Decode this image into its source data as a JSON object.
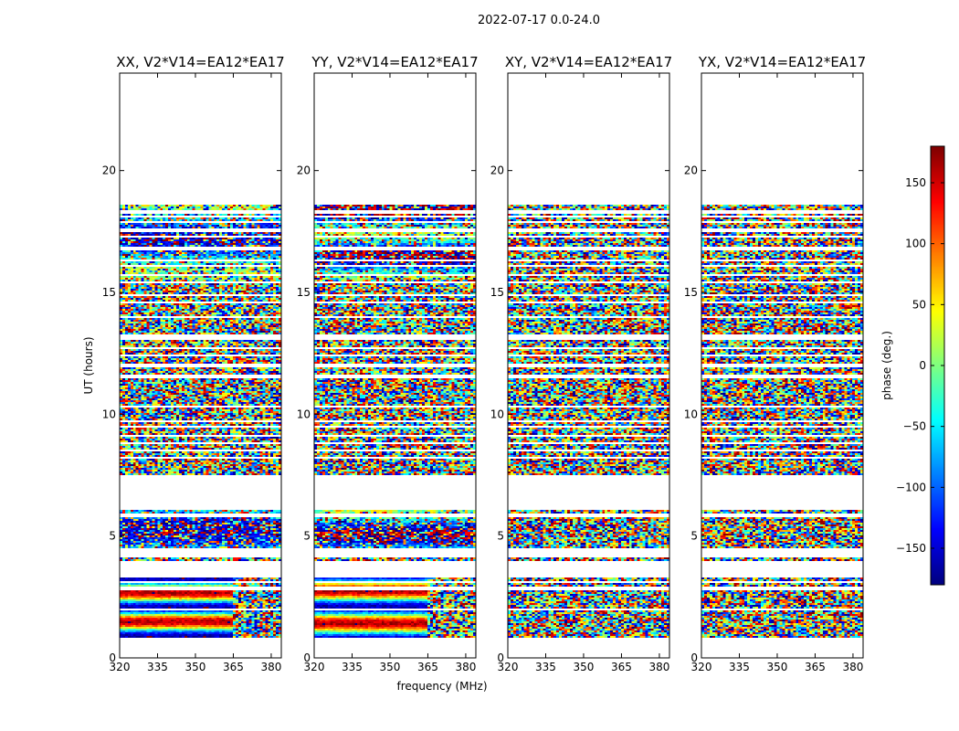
{
  "chart_data": {
    "type": "heatmap",
    "suptitle": "2022-07-17 0.0-24.0",
    "xlabel": "frequency (MHz)",
    "ylabel": "UT (hours)",
    "xlim": [
      320,
      384
    ],
    "ylim": [
      0,
      24
    ],
    "xticks": [
      "320",
      "335",
      "350",
      "365",
      "380"
    ],
    "yticks": [
      "0",
      "5",
      "10",
      "15",
      "20"
    ],
    "panels": [
      {
        "title": "XX, V2*V14=EA12*EA17",
        "pol": "XX"
      },
      {
        "title": "YY, V2*V14=EA12*EA17",
        "pol": "YY"
      },
      {
        "title": "XY, V2*V14=EA12*EA17",
        "pol": "XY"
      },
      {
        "title": "YX, V2*V14=EA12*EA17",
        "pol": "YX"
      }
    ],
    "data_blocks_ut_hours": [
      [
        0.8,
        1.5
      ],
      [
        1.5,
        3.3
      ],
      [
        4.0,
        4.15
      ],
      [
        4.5,
        6.1
      ],
      [
        7.5,
        7.7
      ],
      [
        7.7,
        18.6
      ]
    ],
    "colorbar": {
      "label": "phase (deg.)",
      "range": [
        -180,
        180
      ],
      "ticks": [
        "150",
        "100",
        "50",
        "0",
        "−50",
        "−100",
        "−150"
      ],
      "colormap": "jet"
    }
  }
}
